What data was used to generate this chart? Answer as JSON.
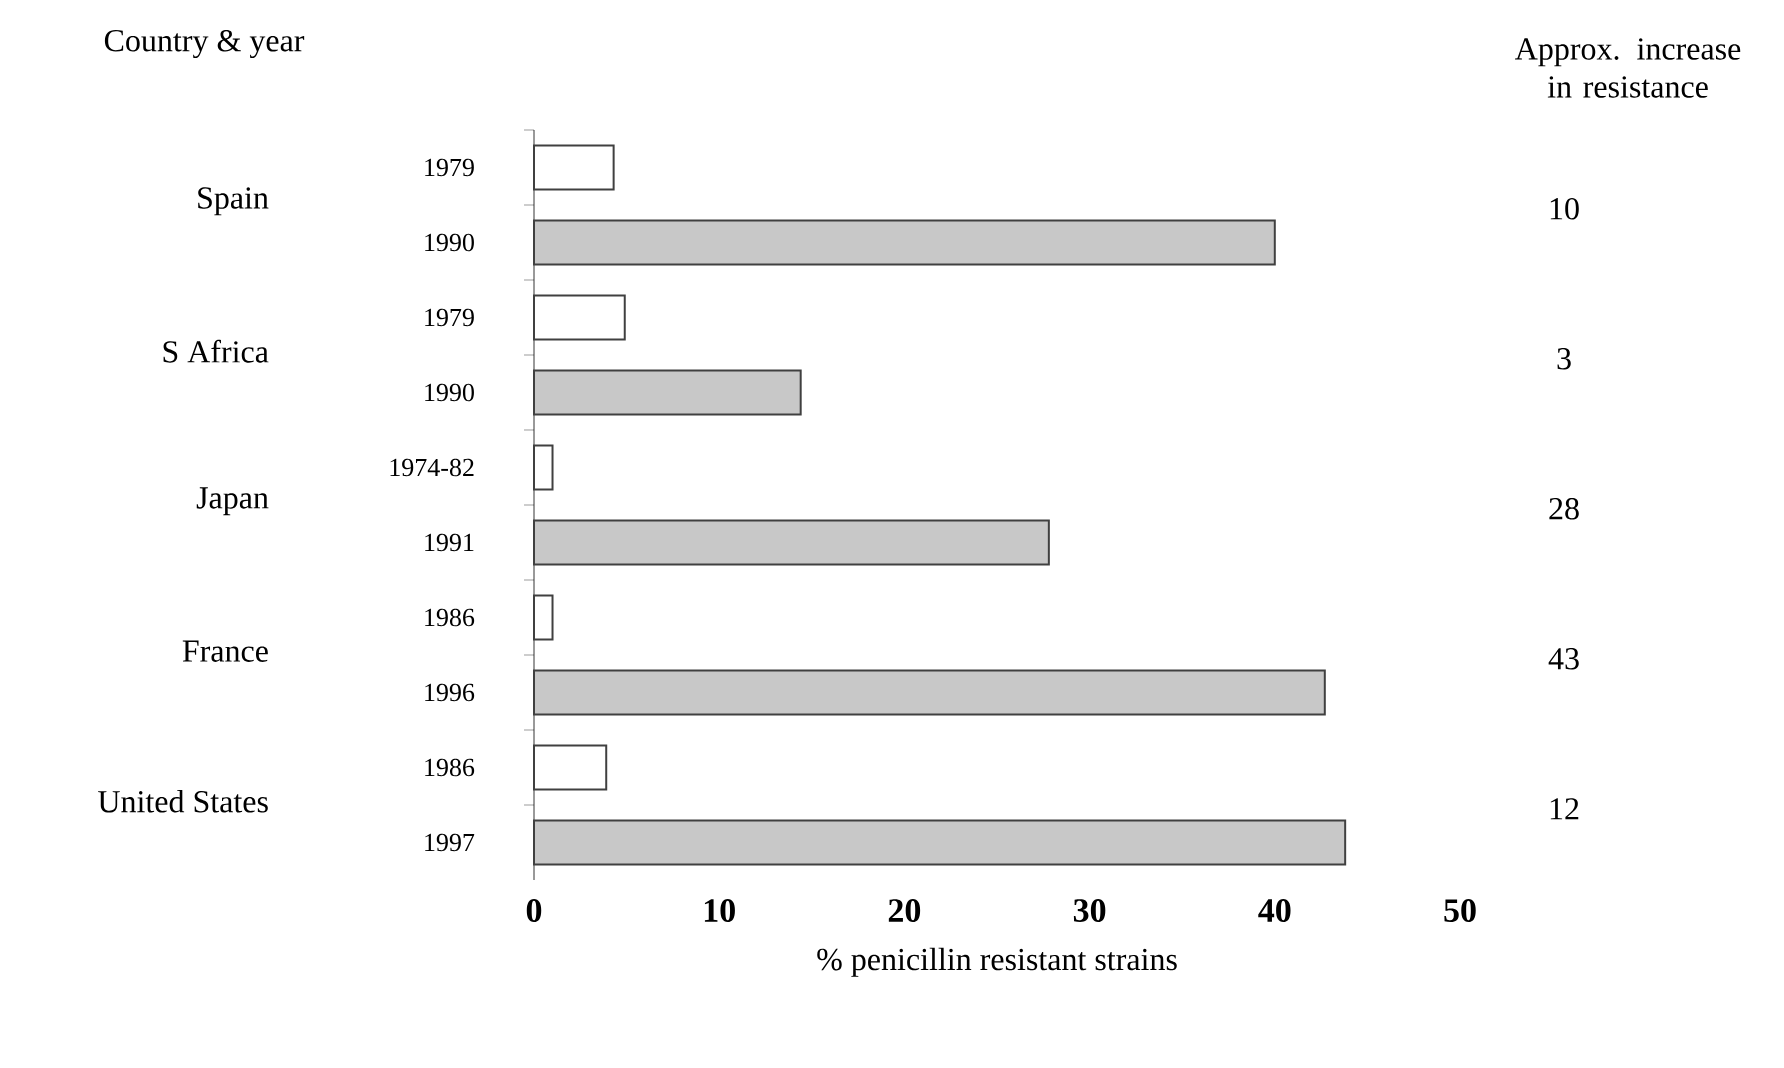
{
  "chart_data": {
    "type": "bar",
    "orientation": "horizontal",
    "ylabel": "Country & year",
    "xlabel": "% penicillin resistant strains",
    "categories": [
      "1979",
      "1990",
      "1979",
      "1990",
      "1974-82",
      "1991",
      "1986",
      "1996",
      "1986",
      "1997"
    ],
    "values": [
      4.3,
      40,
      4.9,
      14.4,
      1.0,
      27.8,
      1.0,
      42.7,
      3.9,
      43.8
    ],
    "colors": [
      "#ffffff",
      "#c8c8c8",
      "#ffffff",
      "#c8c8c8",
      "#ffffff",
      "#c8c8c8",
      "#ffffff",
      "#c8c8c8",
      "#ffffff",
      "#c8c8c8"
    ],
    "xlim": [
      0,
      50
    ],
    "xticks": [
      0,
      10,
      20,
      30,
      40,
      50
    ],
    "annotations": [
      "Spain",
      "S Africa",
      "Japan",
      "France",
      "United States",
      "Approx. increase in resistance",
      "10",
      "3",
      "28",
      "43",
      "12"
    ]
  }
}
